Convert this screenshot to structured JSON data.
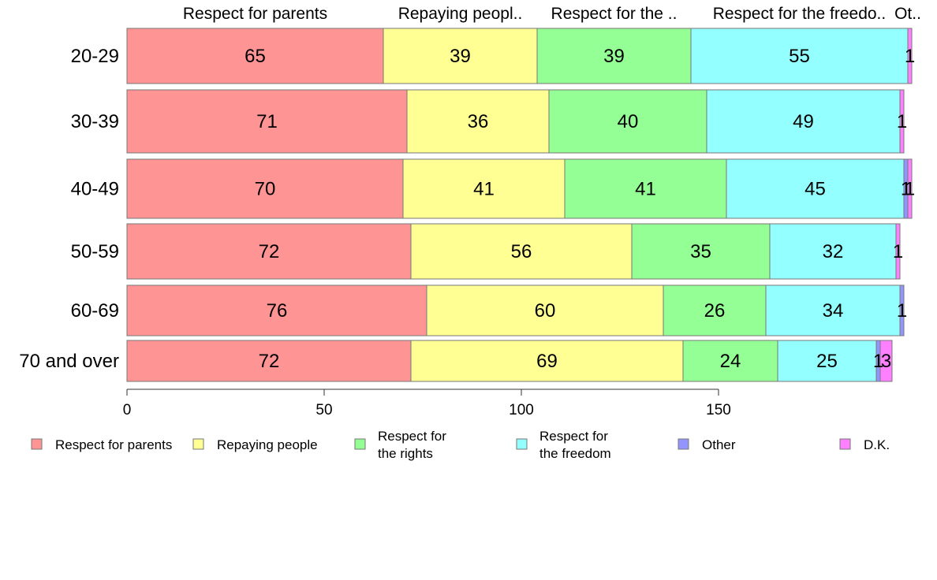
{
  "chart_data": {
    "type": "bar",
    "orientation": "horizontal",
    "stacked": true,
    "categories": [
      "20-29",
      "30-39",
      "40-49",
      "50-59",
      "60-69",
      "70 and over"
    ],
    "series": [
      {
        "name": "Respect for parents",
        "top_label": "Respect for parents",
        "legend_lines": [
          "Respect for parents"
        ],
        "color": "#ff9494",
        "values": [
          65,
          71,
          70,
          72,
          76,
          72
        ],
        "labels": [
          "65",
          "71",
          "70",
          "72",
          "76",
          "72"
        ]
      },
      {
        "name": "Repaying people",
        "top_label": "Repaying peopl..",
        "legend_lines": [
          "Repaying people"
        ],
        "color": "#ffff94",
        "values": [
          39,
          36,
          41,
          56,
          60,
          69
        ],
        "labels": [
          "39",
          "36",
          "41",
          "56",
          "60",
          "69"
        ]
      },
      {
        "name": "Respect for the rights",
        "top_label": "Respect for the ..",
        "legend_lines": [
          "Respect for",
          "the rights"
        ],
        "color": "#94ff94",
        "values": [
          39,
          40,
          41,
          35,
          26,
          24
        ],
        "labels": [
          "39",
          "40",
          "41",
          "35",
          "26",
          "24"
        ]
      },
      {
        "name": "Respect for the freedom",
        "top_label": "Respect for the freedo..",
        "legend_lines": [
          "Respect for",
          "the freedom"
        ],
        "color": "#94ffff",
        "values": [
          55,
          49,
          45,
          32,
          34,
          25
        ],
        "labels": [
          "55",
          "49",
          "45",
          "32",
          "34",
          "25"
        ]
      },
      {
        "name": "Other",
        "top_label": "Ot..",
        "legend_lines": [
          "Other"
        ],
        "color": "#9494ff",
        "values": [
          0,
          0,
          1,
          0,
          1,
          1
        ],
        "labels": [
          "",
          "",
          "1",
          "",
          "1",
          "1"
        ]
      },
      {
        "name": "D.K.",
        "top_label": "",
        "legend_lines": [
          "D.K."
        ],
        "color": "#ff80ff",
        "values": [
          1,
          1,
          1,
          1,
          0,
          3
        ],
        "labels": [
          "1",
          "1",
          "1",
          "1",
          "",
          "3"
        ]
      }
    ],
    "xticks": [
      0,
      50,
      100,
      150
    ],
    "xlim": [
      0,
      200
    ],
    "grid": false,
    "legend_position": "bottom"
  }
}
